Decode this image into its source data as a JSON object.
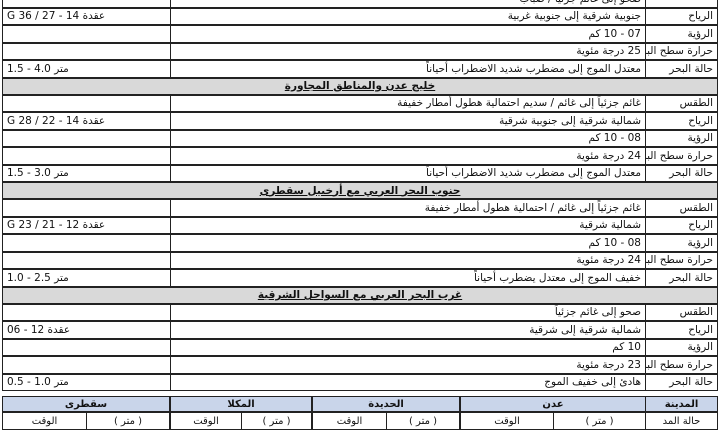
{
  "sections": [
    {
      "rows": [
        {
          "text": "صحو إلى غائم جزئياً / ضباب"
        },
        {
          "label": "الرياح",
          "text": "جنوبية شرقية إلى جنوبية غربية",
          "value": "G 36 / 27 - 14 عقدة"
        },
        {
          "label": "الرؤية",
          "text": "07 - 10 كم"
        },
        {
          "label": "حرارة سطح البحر",
          "text": "25 درجة مئوية"
        },
        {
          "label": "حالة البحر",
          "text": "معتدل الموج إلى مضطرب شديد الاضطراب أحياناً",
          "value": "1.5 - 4.0 متر"
        }
      ]
    },
    {
      "heading": "خليج عدن والمناطق المجاورة",
      "rows": [
        {
          "label": "الطقس",
          "text": "غائم جزئياً إلى غائم / سديم احتمالية هطول أمطار خفيفة"
        },
        {
          "label": "الرياح",
          "text": "شمالية شرقية إلى جنوبية شرقية",
          "value": "G 28 / 22 - 14 عقدة"
        },
        {
          "label": "الرؤية",
          "text": "08 - 10 كم"
        },
        {
          "label": "حرارة سطح البحر",
          "text": "24 درجة مئوية"
        },
        {
          "label": "حالة البحر",
          "text": "معتدل الموج إلى مضطرب شديد الاضطراب أحياناً",
          "value": "1.5 - 3.0 متر"
        }
      ]
    },
    {
      "heading": "جنوب البحر العربي مع أرخبيل سقطرى",
      "rows": [
        {
          "label": "الطقس",
          "text": "غائم جزئياً إلى غائم / احتمالية هطول أمطار خفيفة"
        },
        {
          "label": "الرياح",
          "text": "شمالية شرقية",
          "value": "G 23 / 21 - 12 عقدة"
        },
        {
          "label": "الرؤية",
          "text": "08 - 10 كم"
        },
        {
          "label": "حرارة سطح البحر",
          "text": "24 درجة مئوية"
        },
        {
          "label": "حالة البحر",
          "text": "خفيف الموج إلى معتدل يضطرب أحياناً",
          "value": "1.0 - 2.5 متر"
        }
      ]
    },
    {
      "heading": "غرب البحر العربي مع السواحل الشرقية",
      "rows": [
        {
          "label": "الطقس",
          "text": "صحو إلى غائم جزئياً"
        },
        {
          "label": "الرياح",
          "text": "شمالية شرقية إلى شرقية",
          "value": "06 - 12 عقدة"
        },
        {
          "label": "الرؤية",
          "text": "10 كم"
        },
        {
          "label": "حرارة سطح البحر",
          "text": "23 درجة مئوية"
        },
        {
          "label": "حالة البحر",
          "text": "هادئ إلى خفيف الموج",
          "value": "0.5 - 1.0 متر"
        }
      ]
    }
  ],
  "tide": {
    "city_header": "المدينة",
    "row_label": "حالة المد",
    "cities": [
      {
        "name": "عدن",
        "height": "( متر )",
        "time": "الوقت"
      },
      {
        "name": "الحديدة",
        "height": "( متر )",
        "time": "الوقت"
      },
      {
        "name": "المكلا",
        "height": "( متر )",
        "time": "الوقت"
      },
      {
        "name": "سقطرى",
        "height": "( متر )",
        "time": "الوقت"
      }
    ]
  }
}
